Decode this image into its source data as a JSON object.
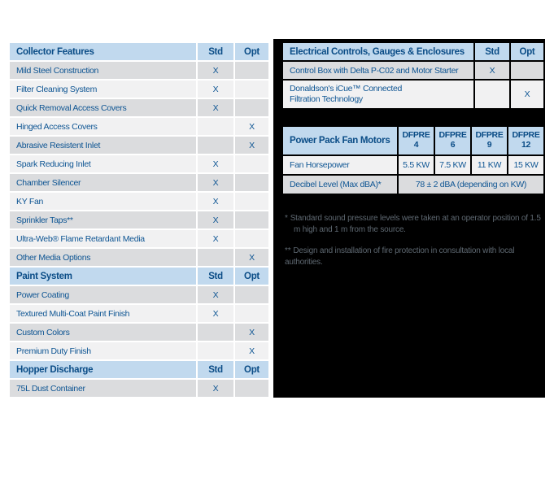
{
  "colors": {
    "panel_bg": "#000000",
    "header_bg": "#C1D9EE",
    "header_text": "#0A4C86",
    "row_gray": "#DBDCDE",
    "row_light": "#F1F1F2",
    "body_text": "#0E5593",
    "footnote_text": "#5E6871",
    "page_bg": "#FFFFFF"
  },
  "left_table": {
    "sections": [
      {
        "header": {
          "title": "Collector Features",
          "std": "Std",
          "opt": "Opt"
        },
        "rows": [
          {
            "label": "Mild Steel Construction",
            "std": "X",
            "opt": ""
          },
          {
            "label": "Filter Cleaning System",
            "std": "X",
            "opt": ""
          },
          {
            "label": "Quick Removal Access Covers",
            "std": "X",
            "opt": ""
          },
          {
            "label": "Hinged Access Covers",
            "std": "",
            "opt": "X"
          },
          {
            "label": "Abrasive Resistent Inlet",
            "std": "",
            "opt": "X"
          },
          {
            "label": "Spark Reducing Inlet",
            "std": "X",
            "opt": ""
          },
          {
            "label": "Chamber Silencer",
            "std": "X",
            "opt": ""
          },
          {
            "label": "KY Fan",
            "std": "X",
            "opt": ""
          },
          {
            "label": "Sprinkler Taps**",
            "std": "X",
            "opt": ""
          },
          {
            "label": "Ultra-Web® Flame Retardant Media",
            "std": "X",
            "opt": ""
          },
          {
            "label": "Other Media Options",
            "std": "",
            "opt": "X"
          }
        ]
      },
      {
        "header": {
          "title": "Paint System",
          "std": "Std",
          "opt": "Opt"
        },
        "rows": [
          {
            "label": "Power Coating",
            "std": "X",
            "opt": ""
          },
          {
            "label": "Textured Multi-Coat Paint Finish",
            "std": "X",
            "opt": ""
          },
          {
            "label": "Custom Colors",
            "std": "",
            "opt": "X"
          },
          {
            "label": "Premium Duty Finish",
            "std": "",
            "opt": "X"
          }
        ]
      },
      {
        "header": {
          "title": "Hopper Discharge",
          "std": "Std",
          "opt": "Opt"
        },
        "rows": [
          {
            "label": "75L Dust Container",
            "std": "X",
            "opt": ""
          }
        ]
      }
    ]
  },
  "electrical_table": {
    "header": {
      "title": "Electrical Controls, Gauges & Enclosures",
      "std": "Std",
      "opt": "Opt"
    },
    "rows": [
      {
        "label": "Control Box with Delta P-C02 and Motor Starter",
        "std": "X",
        "opt": ""
      },
      {
        "label": "Donaldson's iCue™ Connected\nFiltration Technology",
        "std": "",
        "opt": "X"
      }
    ]
  },
  "fan_table": {
    "title": "Power Pack Fan Motors",
    "columns": [
      "DFPRE\n4",
      "DFPRE\n6",
      "DFPRE\n9",
      "DFPRE\n12"
    ],
    "rows": [
      {
        "label": "Fan Horsepower",
        "values": [
          "5.5 KW",
          "7.5 KW",
          "11 KW",
          "15 KW"
        ]
      }
    ],
    "decibel_row": {
      "label": "Decibel Level (Max dBA)*",
      "value": "78 ± 2 dBA (depending on KW)"
    }
  },
  "footnotes": [
    {
      "marker": "*",
      "text": "Standard sound pressure levels were taken at an operator position of 1.5 m high and 1 m from the source."
    },
    {
      "marker": "**",
      "text": "Design and installation of fire protection in consultation with local authorities."
    }
  ]
}
